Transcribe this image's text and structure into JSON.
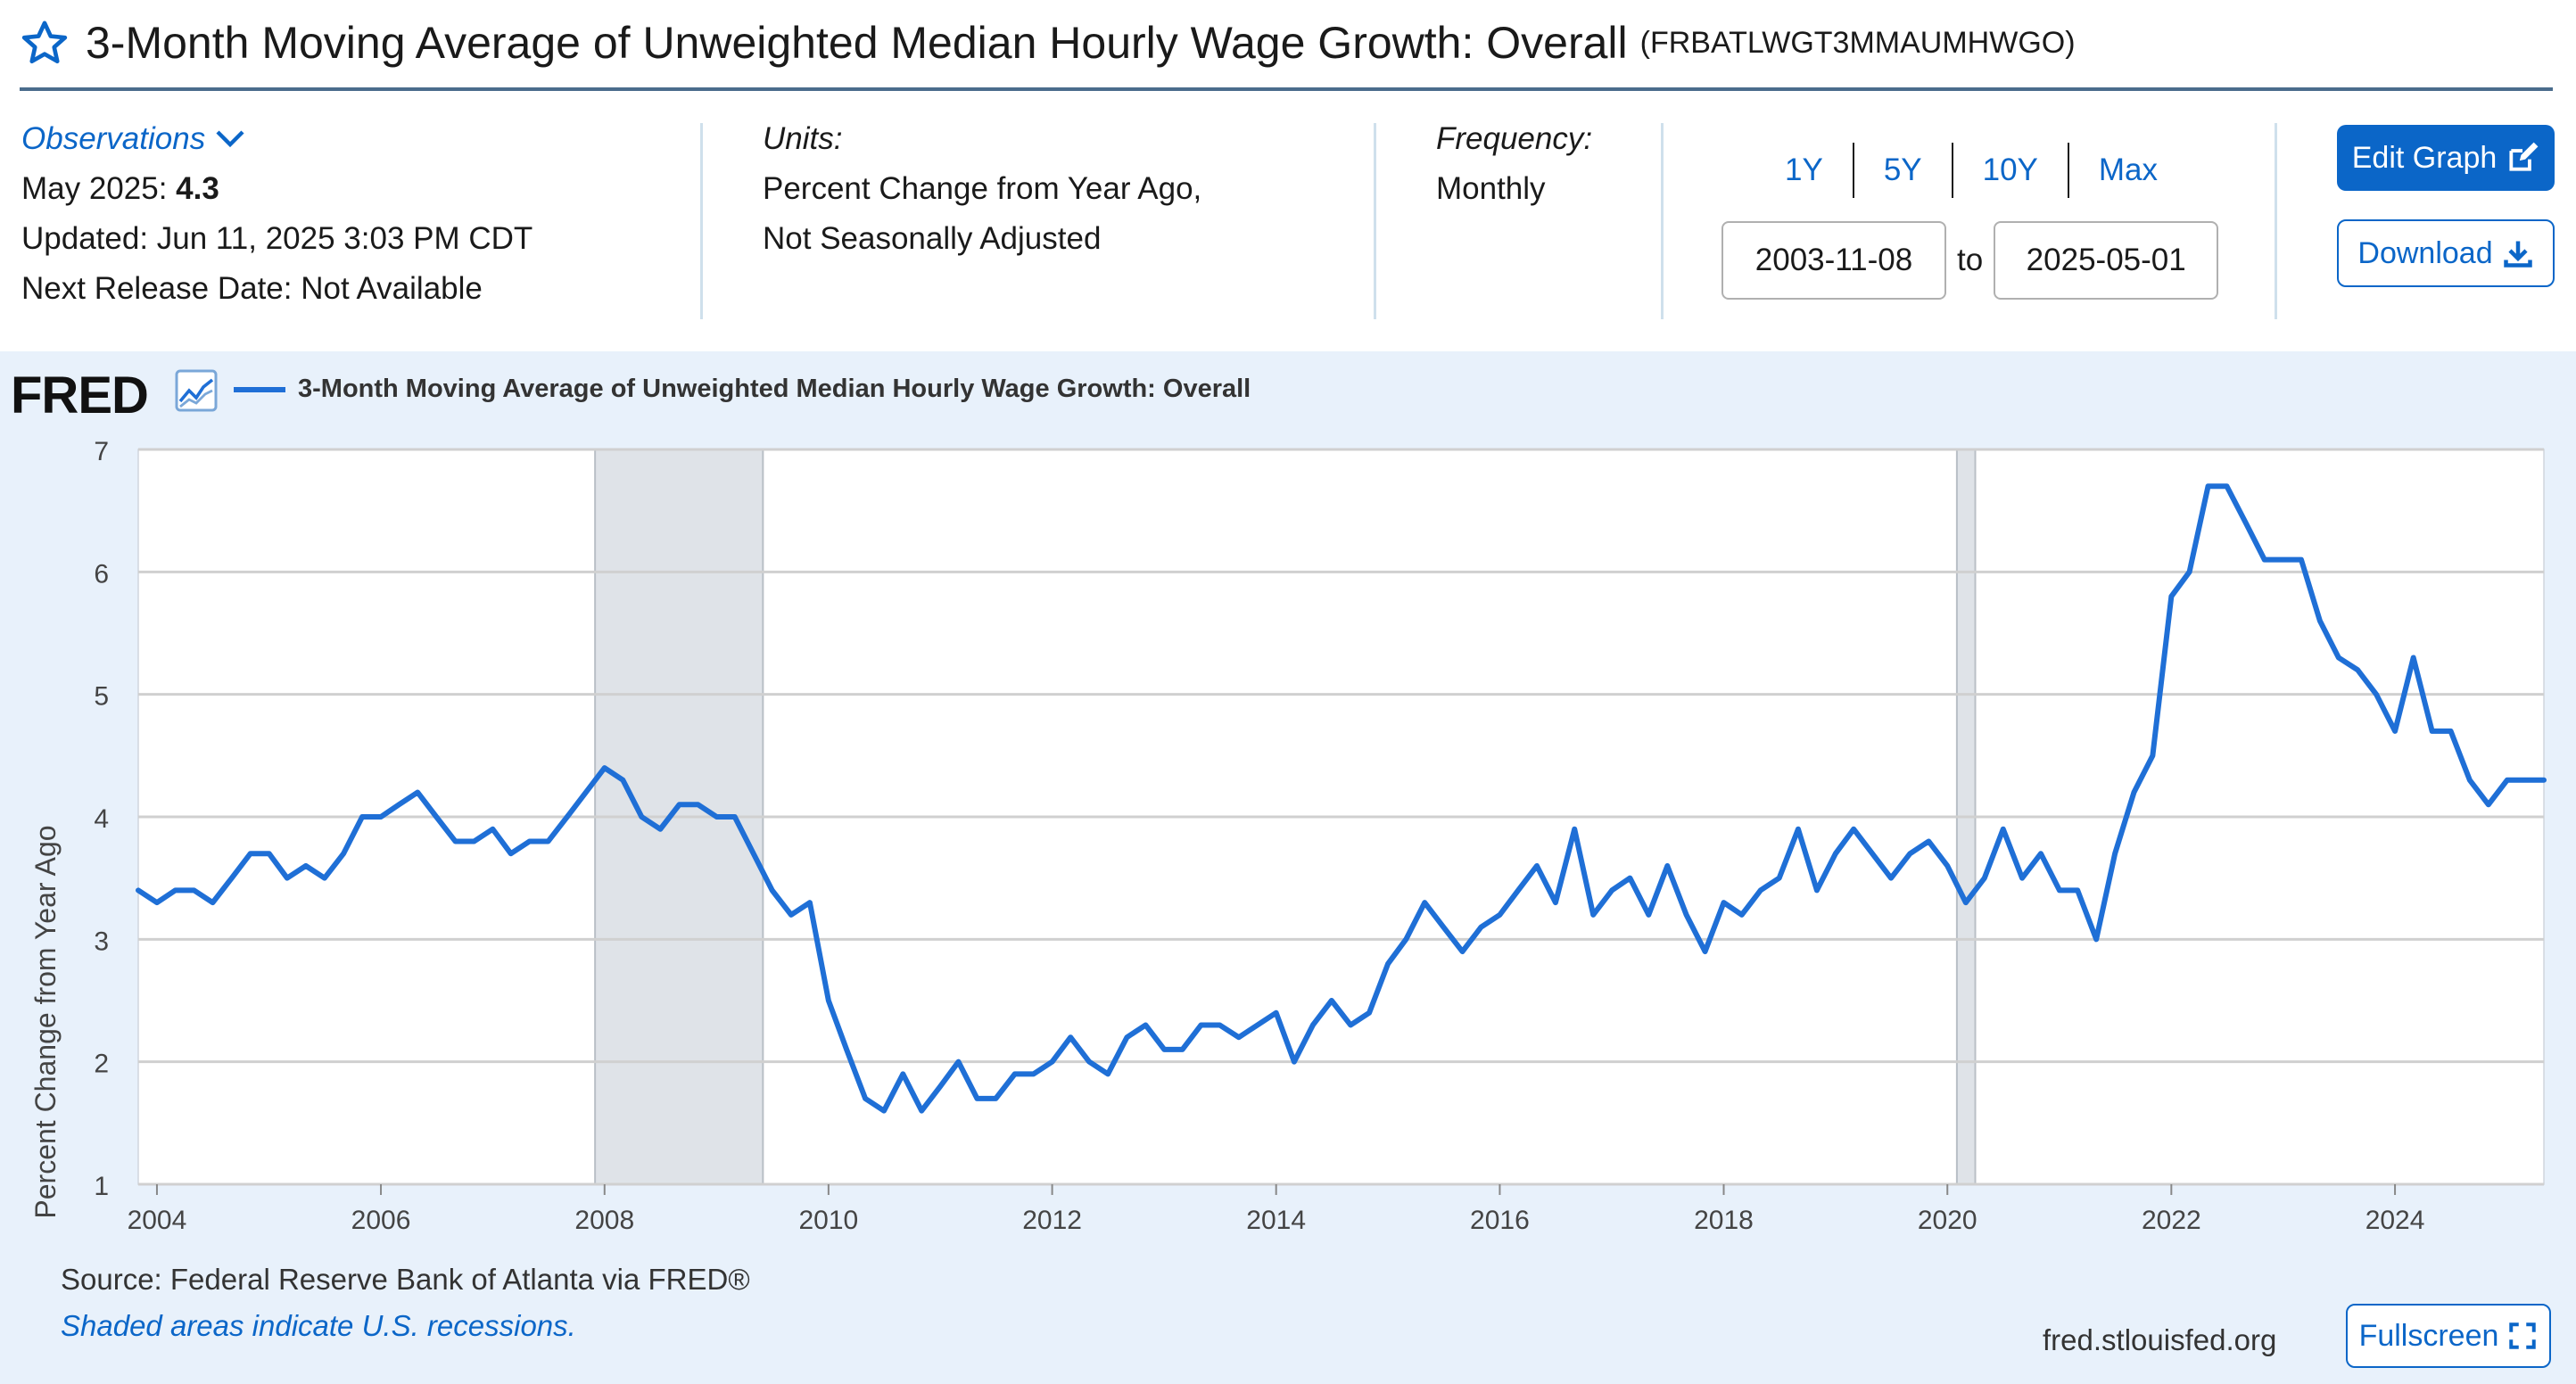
{
  "header": {
    "title": "3-Month Moving Average of Unweighted Median Hourly Wage Growth: Overall",
    "series_id": "(FRBATLWGT3MMAUMHWGO)"
  },
  "meta": {
    "observations_label": "Observations",
    "obs_period": "May 2025:",
    "obs_value": "4.3",
    "updated": "Updated: Jun 11, 2025 3:03 PM CDT",
    "next_release": "Next Release Date: Not Available",
    "units_label": "Units:",
    "units_line1": "Percent Change from Year Ago,",
    "units_line2": "Not Seasonally Adjusted",
    "frequency_label": "Frequency:",
    "frequency_value": "Monthly"
  },
  "controls": {
    "ranges": [
      "1Y",
      "5Y",
      "10Y",
      "Max"
    ],
    "date_from": "2003-11-08",
    "to_label": "to",
    "date_to": "2025-05-01",
    "edit_graph": "Edit Graph",
    "download": "Download",
    "fullscreen": "Fullscreen"
  },
  "chart_header": {
    "logo": "FRED",
    "legend_label": "3-Month Moving Average of Unweighted Median Hourly Wage Growth: Overall"
  },
  "footer": {
    "source": "Source: Federal Reserve Bank of Atlanta via FRED®",
    "shaded_note": "Shaded areas indicate U.S. recessions.",
    "url": "fred.stlouisfed.org"
  },
  "colors": {
    "accent": "#0b66c8",
    "series": "#1f6fd6",
    "panel_bg": "#e8f1fb",
    "recession": "#dfe3e8"
  },
  "chart_data": {
    "type": "line",
    "ylabel": "Percent Change from Year Ago",
    "ylim": [
      1,
      7
    ],
    "yticks": [
      1,
      2,
      3,
      4,
      5,
      6,
      7
    ],
    "xlim": [
      "2003-11-01",
      "2025-05-01"
    ],
    "xticks": [
      "2004",
      "2006",
      "2008",
      "2010",
      "2012",
      "2014",
      "2016",
      "2018",
      "2020",
      "2022",
      "2024"
    ],
    "grid": true,
    "legend_position": "top-left",
    "recessions": [
      [
        "2007-12-01",
        "2009-06-01"
      ],
      [
        "2020-02-01",
        "2020-04-01"
      ]
    ],
    "series": [
      {
        "name": "3-Month Moving Average of Unweighted Median Hourly Wage Growth: Overall",
        "points": [
          [
            "2003-11",
            3.4
          ],
          [
            "2004-01",
            3.3
          ],
          [
            "2004-03",
            3.4
          ],
          [
            "2004-05",
            3.4
          ],
          [
            "2004-07",
            3.3
          ],
          [
            "2004-09",
            3.5
          ],
          [
            "2004-11",
            3.7
          ],
          [
            "2005-01",
            3.7
          ],
          [
            "2005-03",
            3.5
          ],
          [
            "2005-05",
            3.6
          ],
          [
            "2005-07",
            3.5
          ],
          [
            "2005-09",
            3.7
          ],
          [
            "2005-11",
            4.0
          ],
          [
            "2006-01",
            4.0
          ],
          [
            "2006-03",
            4.1
          ],
          [
            "2006-05",
            4.2
          ],
          [
            "2006-07",
            4.0
          ],
          [
            "2006-09",
            3.8
          ],
          [
            "2006-11",
            3.8
          ],
          [
            "2007-01",
            3.9
          ],
          [
            "2007-03",
            3.7
          ],
          [
            "2007-05",
            3.8
          ],
          [
            "2007-07",
            3.8
          ],
          [
            "2007-09",
            4.0
          ],
          [
            "2007-11",
            4.2
          ],
          [
            "2008-01",
            4.4
          ],
          [
            "2008-03",
            4.3
          ],
          [
            "2008-05",
            4.0
          ],
          [
            "2008-07",
            3.9
          ],
          [
            "2008-09",
            4.1
          ],
          [
            "2008-11",
            4.1
          ],
          [
            "2009-01",
            4.0
          ],
          [
            "2009-03",
            4.0
          ],
          [
            "2009-05",
            3.7
          ],
          [
            "2009-07",
            3.4
          ],
          [
            "2009-09",
            3.2
          ],
          [
            "2009-11",
            3.3
          ],
          [
            "2010-01",
            2.5
          ],
          [
            "2010-03",
            2.1
          ],
          [
            "2010-05",
            1.7
          ],
          [
            "2010-07",
            1.6
          ],
          [
            "2010-09",
            1.9
          ],
          [
            "2010-11",
            1.6
          ],
          [
            "2011-01",
            1.8
          ],
          [
            "2011-03",
            2.0
          ],
          [
            "2011-05",
            1.7
          ],
          [
            "2011-07",
            1.7
          ],
          [
            "2011-09",
            1.9
          ],
          [
            "2011-11",
            1.9
          ],
          [
            "2012-01",
            2.0
          ],
          [
            "2012-03",
            2.2
          ],
          [
            "2012-05",
            2.0
          ],
          [
            "2012-07",
            1.9
          ],
          [
            "2012-09",
            2.2
          ],
          [
            "2012-11",
            2.3
          ],
          [
            "2013-01",
            2.1
          ],
          [
            "2013-03",
            2.1
          ],
          [
            "2013-05",
            2.3
          ],
          [
            "2013-07",
            2.3
          ],
          [
            "2013-09",
            2.2
          ],
          [
            "2013-11",
            2.3
          ],
          [
            "2014-01",
            2.4
          ],
          [
            "2014-03",
            2.0
          ],
          [
            "2014-05",
            2.3
          ],
          [
            "2014-07",
            2.5
          ],
          [
            "2014-09",
            2.3
          ],
          [
            "2014-11",
            2.4
          ],
          [
            "2015-01",
            2.8
          ],
          [
            "2015-03",
            3.0
          ],
          [
            "2015-05",
            3.3
          ],
          [
            "2015-07",
            3.1
          ],
          [
            "2015-09",
            2.9
          ],
          [
            "2015-11",
            3.1
          ],
          [
            "2016-01",
            3.2
          ],
          [
            "2016-03",
            3.4
          ],
          [
            "2016-05",
            3.6
          ],
          [
            "2016-07",
            3.3
          ],
          [
            "2016-09",
            3.9
          ],
          [
            "2016-11",
            3.2
          ],
          [
            "2017-01",
            3.4
          ],
          [
            "2017-03",
            3.5
          ],
          [
            "2017-05",
            3.2
          ],
          [
            "2017-07",
            3.6
          ],
          [
            "2017-09",
            3.2
          ],
          [
            "2017-11",
            2.9
          ],
          [
            "2018-01",
            3.3
          ],
          [
            "2018-03",
            3.2
          ],
          [
            "2018-05",
            3.4
          ],
          [
            "2018-07",
            3.5
          ],
          [
            "2018-09",
            3.9
          ],
          [
            "2018-11",
            3.4
          ],
          [
            "2019-01",
            3.7
          ],
          [
            "2019-03",
            3.9
          ],
          [
            "2019-05",
            3.7
          ],
          [
            "2019-07",
            3.5
          ],
          [
            "2019-09",
            3.7
          ],
          [
            "2019-11",
            3.8
          ],
          [
            "2020-01",
            3.6
          ],
          [
            "2020-03",
            3.3
          ],
          [
            "2020-05",
            3.5
          ],
          [
            "2020-07",
            3.9
          ],
          [
            "2020-09",
            3.5
          ],
          [
            "2020-11",
            3.7
          ],
          [
            "2021-01",
            3.4
          ],
          [
            "2021-03",
            3.4
          ],
          [
            "2021-05",
            3.0
          ],
          [
            "2021-07",
            3.7
          ],
          [
            "2021-09",
            4.2
          ],
          [
            "2021-11",
            4.5
          ],
          [
            "2022-01",
            5.8
          ],
          [
            "2022-03",
            6.0
          ],
          [
            "2022-05",
            6.7
          ],
          [
            "2022-07",
            6.7
          ],
          [
            "2022-09",
            6.4
          ],
          [
            "2022-11",
            6.1
          ],
          [
            "2023-01",
            6.1
          ],
          [
            "2023-03",
            6.1
          ],
          [
            "2023-05",
            5.6
          ],
          [
            "2023-07",
            5.3
          ],
          [
            "2023-09",
            5.2
          ],
          [
            "2023-11",
            5.0
          ],
          [
            "2024-01",
            4.7
          ],
          [
            "2024-03",
            5.3
          ],
          [
            "2024-05",
            4.7
          ],
          [
            "2024-07",
            4.7
          ],
          [
            "2024-09",
            4.3
          ],
          [
            "2024-11",
            4.1
          ],
          [
            "2025-01",
            4.3
          ],
          [
            "2025-03",
            4.3
          ],
          [
            "2025-05",
            4.3
          ]
        ]
      }
    ]
  }
}
